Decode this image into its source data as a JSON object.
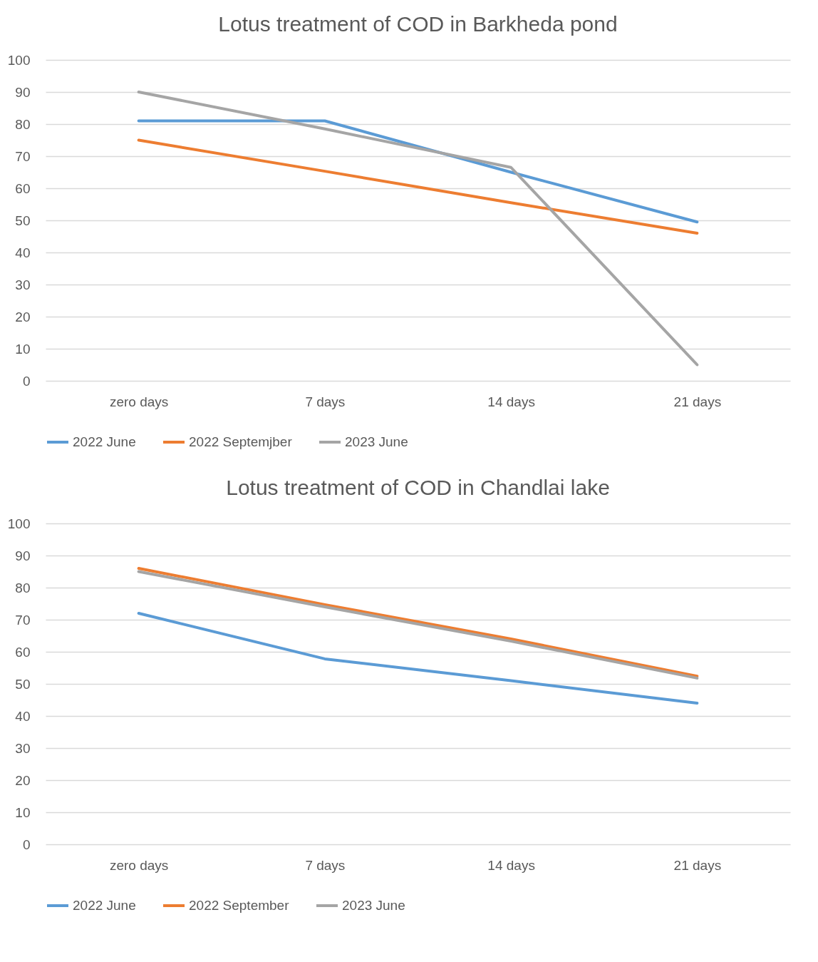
{
  "chart_data": [
    {
      "type": "line",
      "title": "Lotus treatment of COD in Barkheda pond",
      "categories": [
        "zero days",
        "7 days",
        "14 days",
        "21 days"
      ],
      "ylim": [
        0,
        100
      ],
      "yticks": [
        0,
        10,
        20,
        30,
        40,
        50,
        60,
        70,
        80,
        90,
        100
      ],
      "grid": "y",
      "legend": "bottom",
      "marker": "none",
      "line_style": "solid",
      "series": [
        {
          "name": "2022 June",
          "color": "#5b9bd5",
          "values": [
            81,
            81,
            65,
            49.5
          ]
        },
        {
          "name": "2022 Septemjber",
          "color": "#ed7d31",
          "values": [
            75,
            65.3,
            55.5,
            46
          ]
        },
        {
          "name": "2023 June",
          "color": "#a5a5a5",
          "values": [
            90,
            78.5,
            66.5,
            5
          ]
        }
      ]
    },
    {
      "type": "line",
      "title": "Lotus treatment of COD in Chandlai lake",
      "categories": [
        "zero days",
        "7 days",
        "14 days",
        "21 days"
      ],
      "ylim": [
        0,
        100
      ],
      "yticks": [
        0,
        10,
        20,
        30,
        40,
        50,
        60,
        70,
        80,
        90,
        100
      ],
      "grid": "y",
      "legend": "bottom",
      "marker": "none",
      "line_style": "solid",
      "series": [
        {
          "name": "2022 June",
          "color": "#5b9bd5",
          "values": [
            72,
            57.8,
            51,
            44
          ]
        },
        {
          "name": "2022 September",
          "color": "#ed7d31",
          "values": [
            86,
            74.7,
            64,
            52.4
          ]
        },
        {
          "name": "2023 June",
          "color": "#a5a5a5",
          "values": [
            85,
            74,
            63.3,
            51.8
          ]
        }
      ]
    }
  ]
}
